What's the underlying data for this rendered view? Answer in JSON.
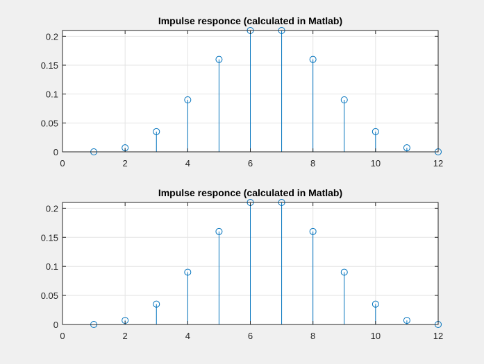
{
  "chart_data": [
    {
      "type": "stem",
      "title": "Impulse responce (calculated in Matlab)",
      "xlabel": "",
      "ylabel": "",
      "xlim": [
        0,
        12
      ],
      "ylim": [
        0,
        0.21
      ],
      "xticks": [
        0,
        2,
        4,
        6,
        8,
        10,
        12
      ],
      "yticks": [
        0,
        0.05,
        0.1,
        0.15,
        0.2
      ],
      "xtick_labels": [
        "0",
        "2",
        "4",
        "6",
        "8",
        "10",
        "12"
      ],
      "ytick_labels": [
        "0",
        "0.05",
        "0.1",
        "0.15",
        "0.2"
      ],
      "grid": true,
      "color": "#0072bd",
      "x": [
        1,
        2,
        3,
        4,
        5,
        6,
        7,
        8,
        9,
        10,
        11,
        12
      ],
      "y": [
        0,
        0.007,
        0.035,
        0.09,
        0.16,
        0.21,
        0.21,
        0.16,
        0.09,
        0.035,
        0.007,
        0
      ]
    },
    {
      "type": "stem",
      "title": "Impulse responce (calculated in Matlab)",
      "xlabel": "",
      "ylabel": "",
      "xlim": [
        0,
        12
      ],
      "ylim": [
        0,
        0.21
      ],
      "xticks": [
        0,
        2,
        4,
        6,
        8,
        10,
        12
      ],
      "yticks": [
        0,
        0.05,
        0.1,
        0.15,
        0.2
      ],
      "xtick_labels": [
        "0",
        "2",
        "4",
        "6",
        "8",
        "10",
        "12"
      ],
      "ytick_labels": [
        "0",
        "0.05",
        "0.1",
        "0.15",
        "0.2"
      ],
      "grid": true,
      "color": "#0072bd",
      "x": [
        1,
        2,
        3,
        4,
        5,
        6,
        7,
        8,
        9,
        10,
        11,
        12
      ],
      "y": [
        0,
        0.007,
        0.035,
        0.09,
        0.16,
        0.21,
        0.21,
        0.16,
        0.09,
        0.035,
        0.007,
        0
      ]
    }
  ]
}
